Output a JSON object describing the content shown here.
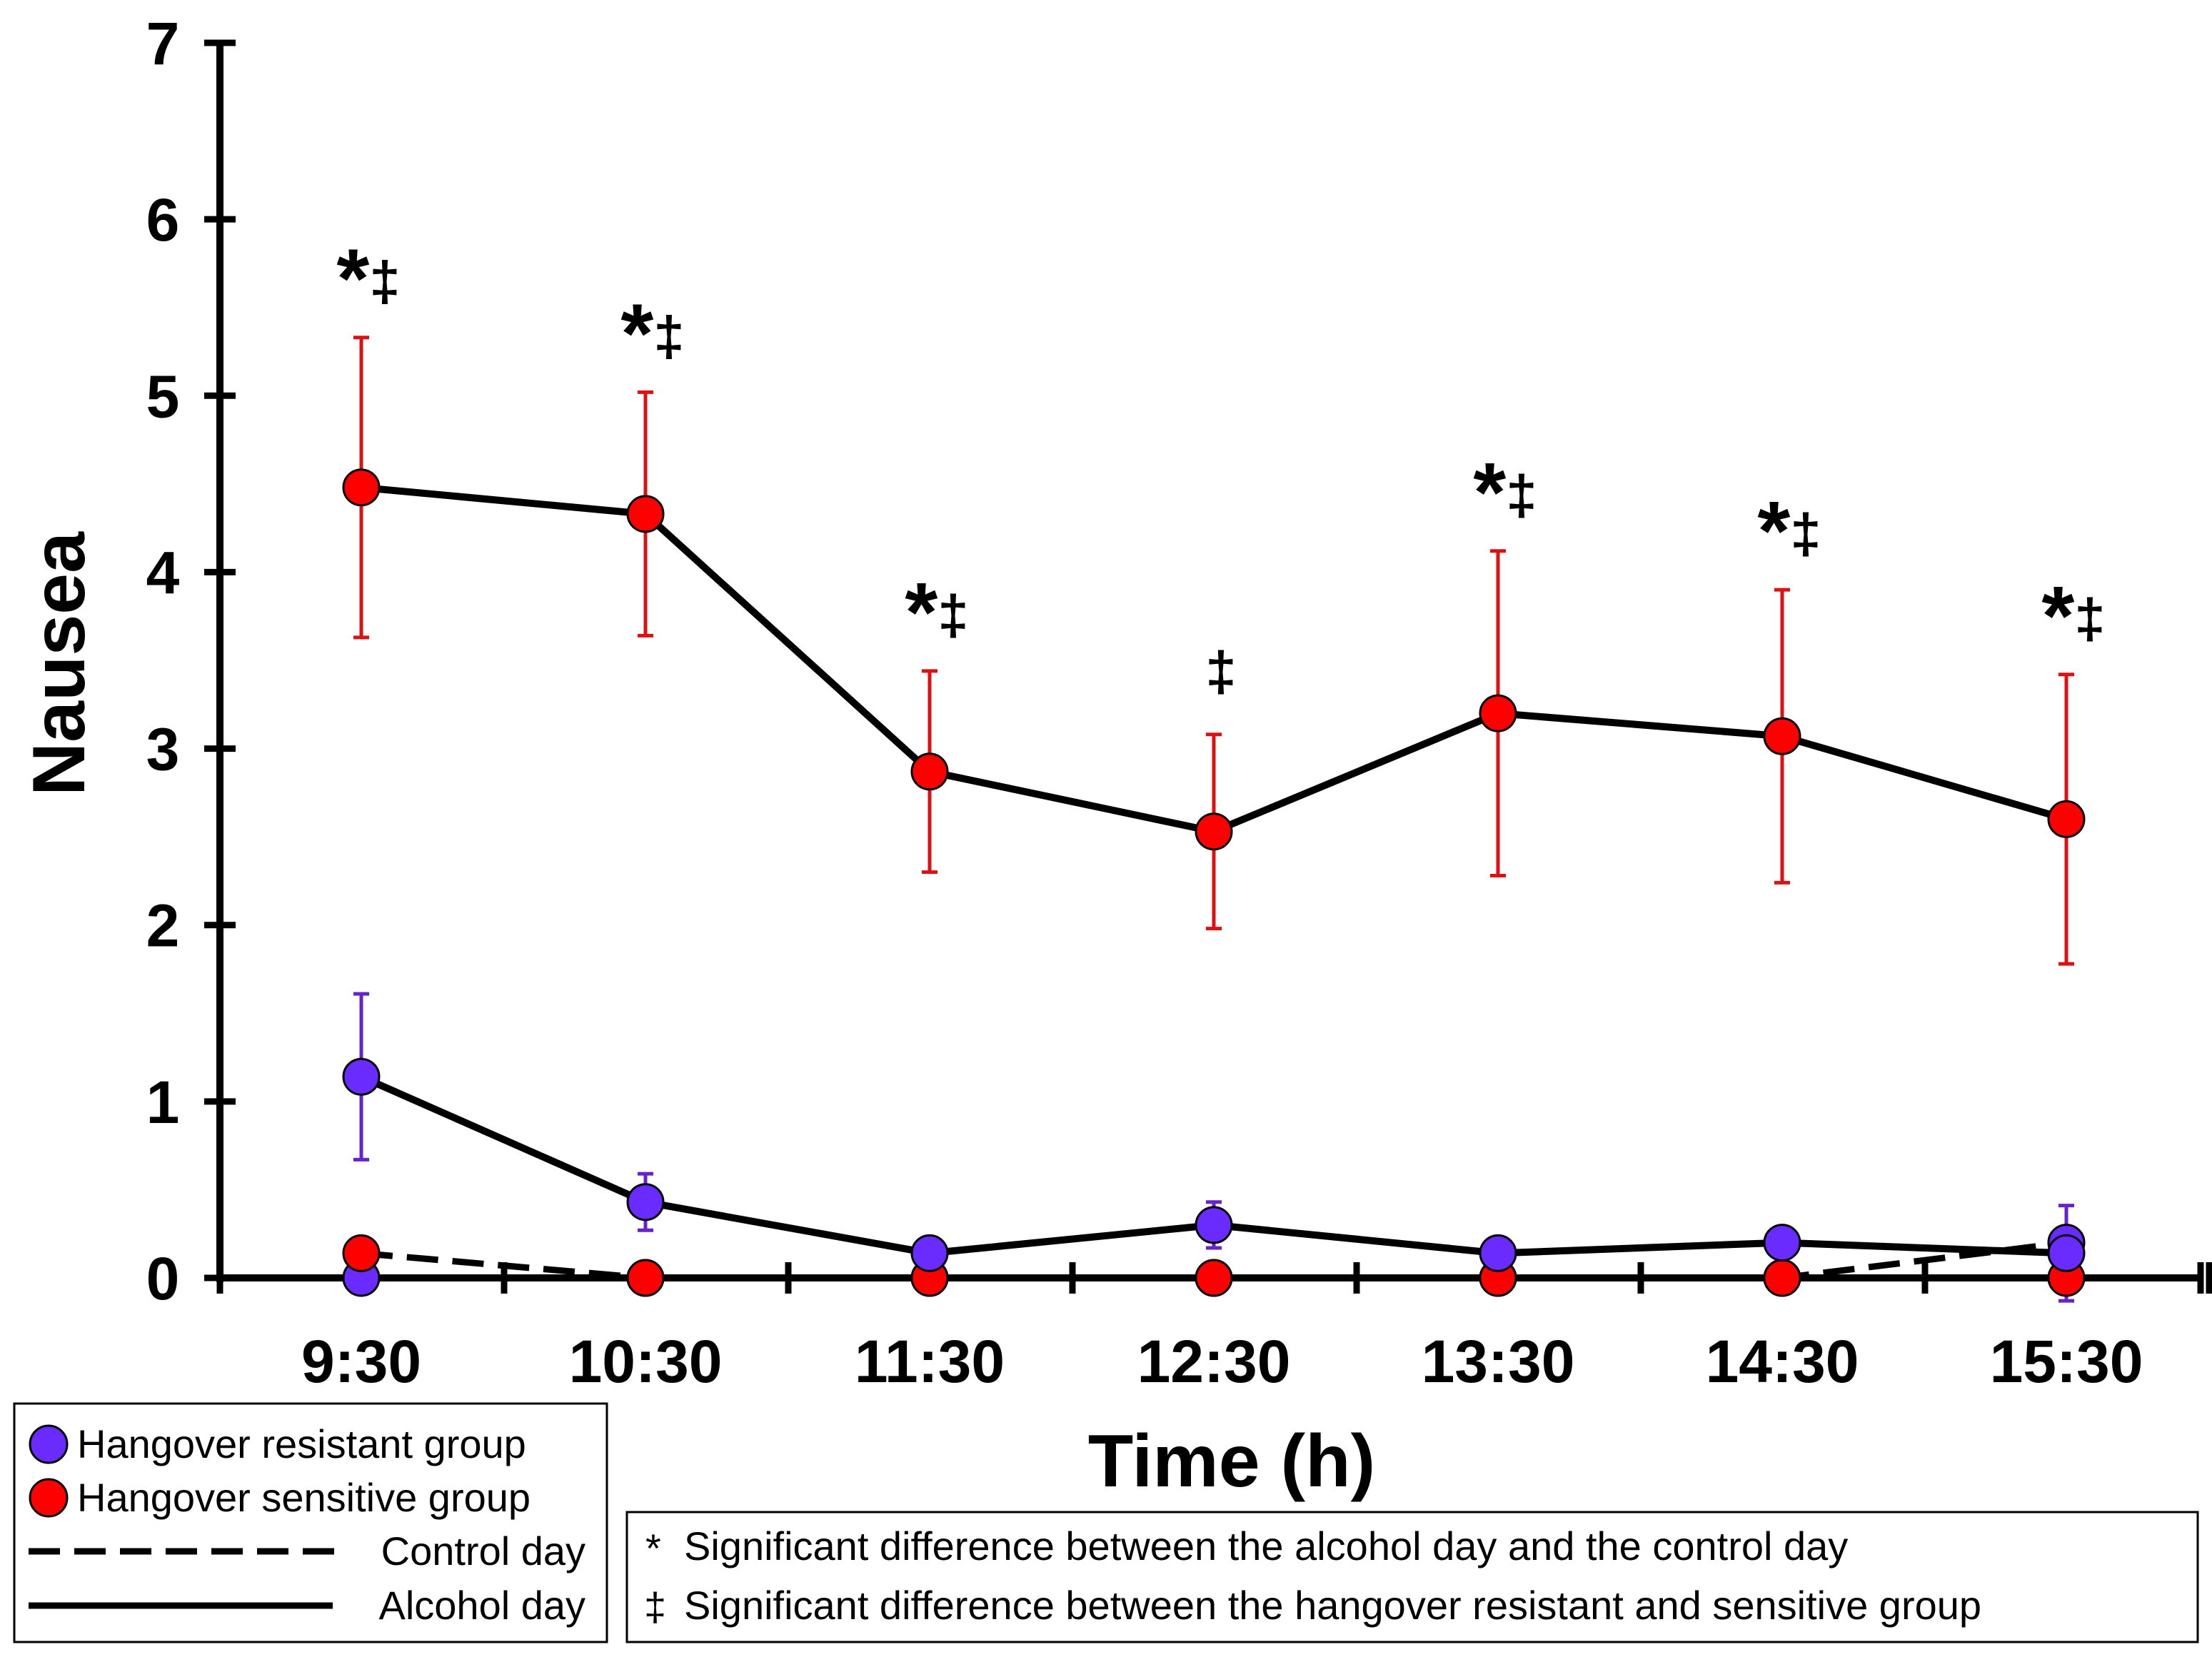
{
  "chart_data": {
    "type": "line",
    "title": "",
    "xlabel": "Time (h)",
    "ylabel": "Nausea",
    "ylim": [
      0,
      7
    ],
    "yticks": [
      "0",
      "1",
      "2",
      "3",
      "4",
      "5",
      "6",
      "7"
    ],
    "categories": [
      "9:30",
      "10:30",
      "11:30",
      "12:30",
      "13:30",
      "14:30",
      "15:30"
    ],
    "series": [
      {
        "name": "Hangover sensitive group - Alcohol day",
        "group": "sensitive",
        "day": "alcohol",
        "color": "#ff0000",
        "error_color": "#dd1111",
        "values": [
          4.48,
          4.33,
          2.87,
          2.53,
          3.2,
          3.07,
          2.6
        ],
        "error": [
          0.85,
          0.69,
          0.57,
          0.55,
          0.92,
          0.83,
          0.82
        ]
      },
      {
        "name": "Hangover resistant group - Alcohol day",
        "group": "resistant",
        "day": "alcohol",
        "color": "#6a2bff",
        "error_color": "#6622cc",
        "values": [
          1.14,
          0.43,
          0.14,
          0.3,
          0.14,
          0.2,
          0.14
        ],
        "error": [
          0.47,
          0.16,
          0.0,
          0.13,
          0.0,
          0.0,
          0.27
        ]
      },
      {
        "name": "Hangover resistant group - Control day",
        "group": "resistant",
        "day": "control",
        "color": "#6a2bff",
        "values": [
          0.0,
          0.0,
          0.0,
          0.0,
          0.0,
          0.0,
          0.2
        ]
      },
      {
        "name": "Hangover sensitive group - Control day",
        "group": "sensitive",
        "day": "control",
        "color": "#ff0000",
        "values": [
          0.14,
          0.0,
          0.0,
          0.0,
          0.0,
          0.0,
          0.0
        ]
      }
    ],
    "annotations": [
      "*‡",
      "*‡",
      "*‡",
      "‡",
      "*‡",
      "*‡",
      "*‡"
    ],
    "legend": {
      "placement": "bottom-left",
      "entries": [
        "Hangover resistant group",
        "Hangover sensitive group",
        "Control day",
        "Alcohol day"
      ]
    },
    "footnote": {
      "placement": "bottom-right",
      "lines": [
        {
          "symbol": "*",
          "text": "Significant difference between the alcohol day and the control day"
        },
        {
          "symbol": "‡",
          "text": "Significant difference between the hangover resistant and sensitive group"
        }
      ]
    },
    "grid": false
  }
}
